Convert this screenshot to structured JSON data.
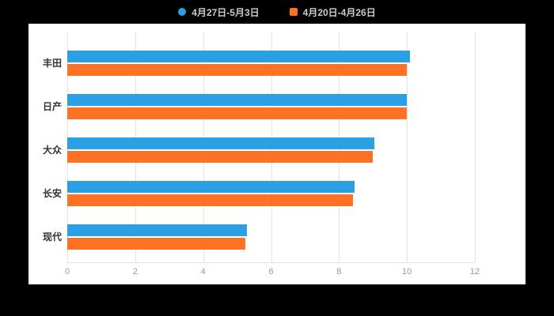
{
  "page": {
    "background_color": "#000000",
    "panel_color": "#ffffff"
  },
  "legend": {
    "position": "top",
    "items": [
      {
        "label": "4月27日-5月3日",
        "color": "#2B9FE3",
        "shape": "circle"
      },
      {
        "label": "4月20日-4月26日",
        "color": "#FF7124",
        "shape": "square"
      }
    ]
  },
  "chart_data": {
    "type": "bar",
    "orientation": "horizontal",
    "title": "",
    "xlabel": "",
    "ylabel": "",
    "categories": [
      "丰田",
      "日产",
      "大众",
      "长安",
      "现代"
    ],
    "series": [
      {
        "name": "4月27日-5月3日",
        "color": "#2B9FE3",
        "values": [
          10.1,
          10.0,
          9.05,
          8.45,
          5.3
        ]
      },
      {
        "name": "4月20日-4月26日",
        "color": "#FF7124",
        "values": [
          10.0,
          10.0,
          9.0,
          8.4,
          5.25
        ]
      }
    ],
    "xlim": [
      0,
      12
    ],
    "xticks": [
      0,
      2,
      4,
      6,
      8,
      10,
      12
    ],
    "grid": true,
    "gridline_color": "#e2e2e2",
    "legend_position": "top",
    "tick_label_color": "#999999",
    "category_label_color": "#333333"
  }
}
